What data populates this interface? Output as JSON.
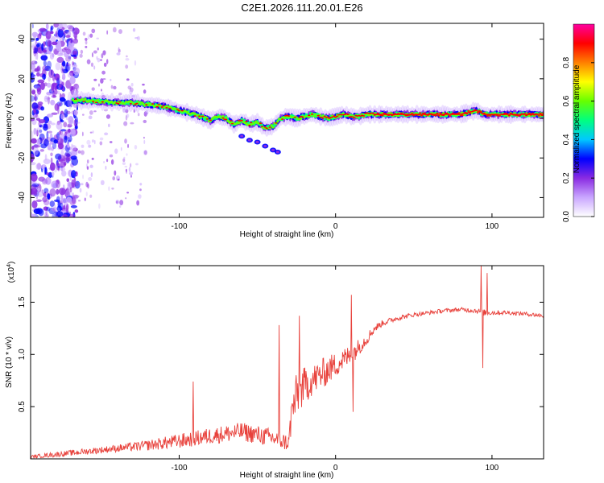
{
  "title": "C2E1.2026.111.20.01.E26",
  "chart_data": [
    {
      "type": "heatmap",
      "name": "spectrogram",
      "xlabel": "Height of straight line (km)",
      "ylabel": "Frequency (Hz)",
      "xlim": [
        -195,
        133
      ],
      "ylim": [
        -50,
        48
      ],
      "xticks": [
        -100,
        0,
        100
      ],
      "xtick_labels": [
        "-100",
        "0",
        "100"
      ],
      "yticks": [
        -40,
        -20,
        0,
        20,
        40
      ],
      "ytick_labels": [
        "-40",
        "-20",
        "0",
        "20",
        "40"
      ],
      "ridge": {
        "x": [
          -195,
          -185,
          -170,
          -160,
          -150,
          -140,
          -130,
          -120,
          -110,
          -100,
          -90,
          -80,
          -75,
          -70,
          -65,
          -60,
          -55,
          -50,
          -45,
          -40,
          -35,
          -30,
          -25,
          -20,
          -15,
          -10,
          -5,
          0,
          5,
          10,
          15,
          20,
          30,
          40,
          50,
          60,
          70,
          80,
          85,
          90,
          95,
          100,
          110,
          120,
          133
        ],
        "y": [
          10,
          10,
          9,
          9,
          8.5,
          8,
          8,
          7,
          6,
          4,
          2,
          -1,
          1,
          0,
          -3,
          -1,
          -3,
          -2,
          -5,
          -4,
          0,
          1,
          0,
          1,
          2,
          1,
          0,
          1,
          2,
          1,
          1,
          2,
          2,
          2,
          2,
          2,
          2,
          2,
          3,
          4,
          2,
          2,
          2,
          2,
          2
        ]
      },
      "branch": {
        "x": [
          -60,
          -55,
          -50,
          -45,
          -40,
          -37
        ],
        "y": [
          -9,
          -11,
          -12,
          -14,
          -16,
          -17
        ]
      },
      "colorbar": {
        "label": "Normalized spectral amplitude",
        "range": [
          0,
          1
        ],
        "ticks": [
          0,
          0.2,
          0.4,
          0.6,
          0.8
        ],
        "tick_labels": [
          "0.0",
          "0.2",
          "0.4",
          "0.6",
          "0.8"
        ],
        "colors": [
          "#ffffff",
          "#c9a6ff",
          "#8a2be2",
          "#0000ff",
          "#00c8ff",
          "#00ff80",
          "#66ff00",
          "#ffff00",
          "#ff8000",
          "#ff0000",
          "#ff00a0"
        ]
      }
    },
    {
      "type": "line",
      "name": "snr",
      "xlabel": "Height of straight line (km)",
      "ylabel": "SNR (10 * v/v)",
      "scale_note": "(x10",
      "scale_exp": "4",
      "xlim": [
        -195,
        133
      ],
      "ylim": [
        0,
        18500
      ],
      "xticks": [
        -100,
        0,
        100
      ],
      "xtick_labels": [
        "-100",
        "0",
        "100"
      ],
      "yticks": [
        5000,
        10000,
        15000
      ],
      "ytick_labels": [
        "0.5",
        "1.0",
        "1.5"
      ],
      "line_color": "#e8413b",
      "envelope": {
        "x": [
          -195,
          -180,
          -160,
          -140,
          -120,
          -100,
          -80,
          -60,
          -40,
          -30,
          -28,
          -25,
          -20,
          -15,
          -10,
          -5,
          0,
          10,
          20,
          25,
          30,
          40,
          50,
          60,
          70,
          80,
          90,
          95,
          100,
          110,
          120,
          133
        ],
        "mean": [
          200,
          400,
          700,
          1000,
          1300,
          1700,
          2200,
          2600,
          2000,
          1500,
          4500,
          6000,
          7000,
          7500,
          8000,
          8500,
          9000,
          10000,
          11500,
          12500,
          13000,
          13500,
          13800,
          14000,
          14200,
          14300,
          14200,
          14000,
          14000,
          14000,
          13900,
          13700
        ],
        "noise": [
          150,
          250,
          300,
          350,
          500,
          700,
          800,
          900,
          900,
          800,
          2000,
          2200,
          1800,
          1500,
          1500,
          1400,
          1200,
          1000,
          600,
          400,
          300,
          250,
          200,
          200,
          200,
          200,
          250,
          300,
          250,
          200,
          200,
          200
        ]
      },
      "spikes": [
        {
          "x": -91,
          "y": 7400
        },
        {
          "x": -36,
          "y": 12800
        },
        {
          "x": -23,
          "y": 13700
        },
        {
          "x": 10,
          "y": 15700
        },
        {
          "x": 11,
          "y": 4500
        },
        {
          "x": 93,
          "y": 18500
        },
        {
          "x": 94,
          "y": 8700
        },
        {
          "x": 97,
          "y": 17800
        }
      ]
    }
  ]
}
